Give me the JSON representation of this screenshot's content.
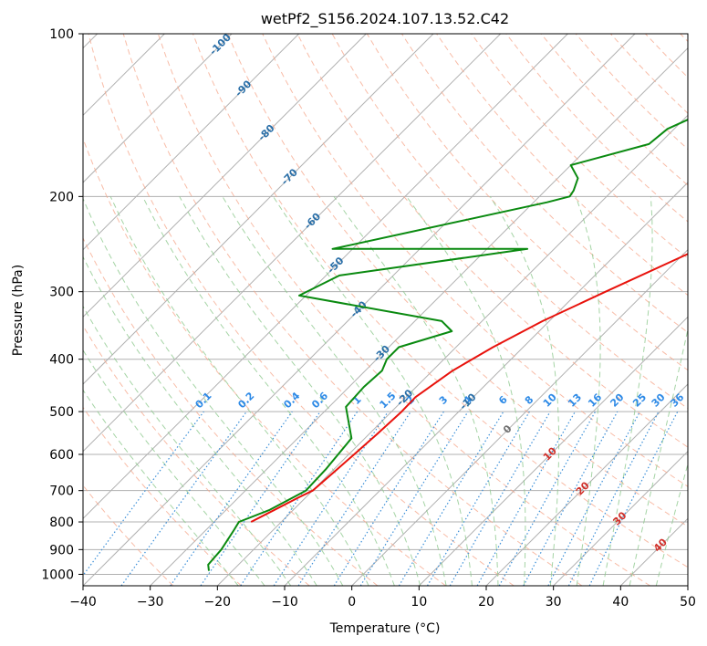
{
  "chart_data": {
    "type": "line",
    "title": "wetPf2_S156.2024.107.13.52.C42",
    "xlabel": "Temperature (°C)",
    "ylabel": "Pressure (hPa)",
    "xlim": [
      -40,
      50
    ],
    "ylim": [
      1050,
      100
    ],
    "y_scale": "log",
    "grid": true,
    "x_ticks": [
      -40,
      -30,
      -20,
      -10,
      0,
      10,
      20,
      30,
      40,
      50
    ],
    "y_ticks": [
      100,
      200,
      300,
      400,
      500,
      600,
      700,
      800,
      900,
      1000
    ],
    "skew": "skew-T 45°",
    "colors": {
      "temperature": "#e8120c",
      "dewpoint": "#0a8a10",
      "isotherm": "#b0b0b0",
      "dry_adiabat": "#f5a58a",
      "moist_adiabat": "#8ec98e",
      "mixing_ratio": "#3b8fd8",
      "isotherm_label_neg": "#2a6fa8",
      "isotherm_label_pos": "#d0302a",
      "mixing_label": "#2e8ae6"
    },
    "series": [
      {
        "key": "temperature",
        "x": [
          -24.5,
          -22.8,
          -21.0,
          -20.0,
          -19.6,
          -19.2,
          -18.8,
          -18.5,
          -18.6,
          -17.0,
          -14.5,
          -11.0,
          -6.0,
          1.5,
          9.5,
          14.5,
          20.0,
          22.5,
          26.5,
          29.5,
          32.0
        ],
        "y": [
          800,
          760,
          720,
          700,
          650,
          600,
          550,
          500,
          470,
          420,
          380,
          340,
          300,
          250,
          200,
          175,
          150,
          140,
          120,
          110,
          100
        ]
      },
      {
        "key": "dewpoint",
        "x": [
          -23.5,
          -24.5,
          -24.8,
          -25.8,
          -26.3,
          -23.5,
          -21.0,
          -21.2,
          -22.0,
          -27.5,
          -27.8,
          -27.5,
          -28.5,
          -28.5,
          -23.0,
          -26.0,
          -51.0,
          -48.0,
          -24.0,
          -53.0,
          -28.0,
          -25.5,
          -25.8,
          -27.0,
          -30.0,
          -21.5,
          -21.0,
          -15.0,
          -12.0,
          -13.0
        ],
        "y": [
          985,
          960,
          900,
          830,
          800,
          760,
          700,
          640,
          560,
          490,
          450,
          420,
          400,
          380,
          355,
          340,
          305,
          280,
          250,
          250,
          205,
          200,
          195,
          185,
          175,
          160,
          150,
          130,
          115,
          100
        ]
      }
    ],
    "isotherm_labels": [
      "-100",
      "-90",
      "-80",
      "-70",
      "-60",
      "-50",
      "-40",
      "-30",
      "-20",
      "-10",
      "0",
      "10",
      "20",
      "30",
      "40"
    ],
    "mixing_ratio_labels": [
      "0.1",
      "0.2",
      "0.4",
      "0.6",
      "1",
      "1.5",
      "2",
      "3",
      "4",
      "6",
      "8",
      "10",
      "13",
      "16",
      "20",
      "25",
      "30",
      "36"
    ]
  }
}
